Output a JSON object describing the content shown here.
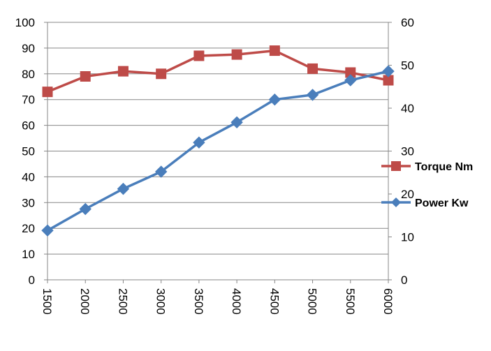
{
  "chart_data": {
    "type": "line",
    "title": "",
    "xlabel": "",
    "ylabel": "",
    "y2label": "",
    "x": [
      1500,
      2000,
      2500,
      3000,
      3500,
      4000,
      4500,
      5000,
      5500,
      6000
    ],
    "x_tick_labels": [
      "1500",
      "2000",
      "2500",
      "3000",
      "3500",
      "4000",
      "4500",
      "5000",
      "5500",
      "6000"
    ],
    "ylim": [
      0,
      100
    ],
    "y_ticks": [
      0,
      10,
      20,
      30,
      40,
      50,
      60,
      70,
      80,
      90,
      100
    ],
    "y2lim": [
      0,
      60
    ],
    "y2_ticks": [
      0,
      10,
      20,
      30,
      40,
      50,
      60
    ],
    "grid": true,
    "legend_position": "right",
    "series": [
      {
        "name": "Torque Nm",
        "axis": "left",
        "color": "#BE4B48",
        "marker": "square",
        "values": [
          73,
          79,
          81,
          80,
          87,
          87.5,
          89,
          82,
          80.5,
          77.5
        ]
      },
      {
        "name": "Power Kw",
        "axis": "right",
        "color": "#4A7EBB",
        "marker": "diamond",
        "values": [
          11.5,
          16.5,
          21.2,
          25.2,
          32,
          36.7,
          42,
          43.1,
          46.5,
          48.6
        ]
      }
    ]
  }
}
